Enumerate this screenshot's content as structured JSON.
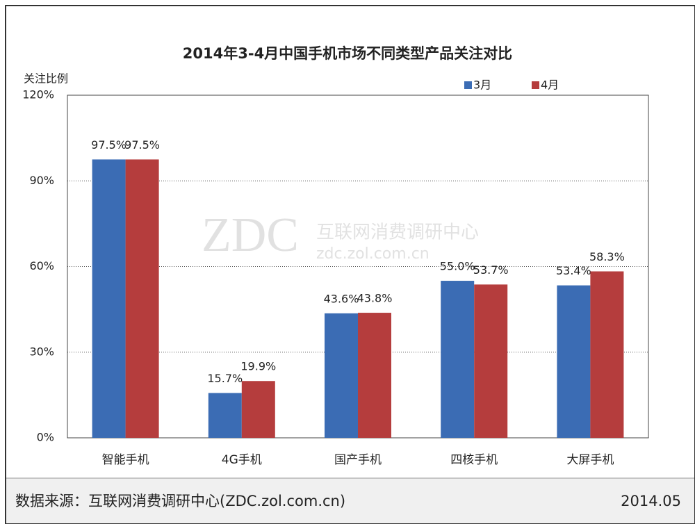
{
  "chart_data": {
    "type": "bar",
    "title": "2014年3-4月中国手机市场不同类型产品关注对比",
    "y_axis_label": "关注比例",
    "categories": [
      "智能手机",
      "4G手机",
      "国产手机",
      "四核手机",
      "大屏手机"
    ],
    "series": [
      {
        "name": "3月",
        "color": "#3b6cb4",
        "values": [
          97.5,
          15.7,
          43.6,
          55.0,
          53.4
        ],
        "value_labels": [
          "97.5%",
          "15.7%",
          "43.6%",
          "55.0%",
          "53.4%"
        ]
      },
      {
        "name": "4月",
        "color": "#b53d3d",
        "values": [
          97.5,
          19.9,
          43.8,
          53.7,
          58.3
        ],
        "value_labels": [
          "97.5%",
          "19.9%",
          "43.8%",
          "53.7%",
          "58.3%"
        ]
      }
    ],
    "ylim": [
      0,
      120
    ],
    "yticks": [
      {
        "value": 0,
        "label": "0%"
      },
      {
        "value": 30,
        "label": "30%"
      },
      {
        "value": 60,
        "label": "60%"
      },
      {
        "value": 90,
        "label": "90%"
      },
      {
        "value": 120,
        "label": "120%"
      }
    ],
    "grid": true,
    "legend": "top-right",
    "watermark": {
      "logo": "ZDC",
      "name": "互联网消费调研中心",
      "url": "zdc.zol.com.cn"
    },
    "source": "数据来源：互联网消费调研中心(ZDC.zol.com.cn)",
    "date": "2014.05"
  }
}
